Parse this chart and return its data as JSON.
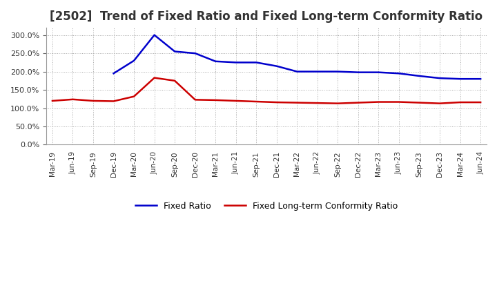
{
  "title": "[2502]  Trend of Fixed Ratio and Fixed Long-term Conformity Ratio",
  "x_labels": [
    "Mar-19",
    "Jun-19",
    "Sep-19",
    "Dec-19",
    "Mar-20",
    "Jun-20",
    "Sep-20",
    "Dec-20",
    "Mar-21",
    "Jun-21",
    "Sep-21",
    "Dec-21",
    "Mar-22",
    "Jun-22",
    "Sep-22",
    "Dec-22",
    "Mar-23",
    "Jun-23",
    "Sep-23",
    "Dec-23",
    "Mar-24",
    "Jun-24"
  ],
  "fixed_ratio": [
    null,
    null,
    null,
    195.0,
    230.0,
    300.0,
    255.0,
    250.0,
    228.0,
    225.0,
    225.0,
    215.0,
    200.0,
    200.0,
    200.0,
    198.0,
    198.0,
    195.0,
    188.0,
    182.0,
    180.0,
    180.0
  ],
  "fixed_ltcr": [
    120.0,
    124.0,
    120.0,
    119.0,
    132.0,
    183.0,
    175.0,
    123.0,
    122.0,
    120.0,
    118.0,
    116.0,
    115.0,
    114.0,
    113.0,
    115.0,
    117.0,
    117.0,
    115.0,
    113.0,
    116.0,
    116.0
  ],
  "fixed_ratio_color": "#0000CC",
  "fixed_ltcr_color": "#CC0000",
  "ylim": [
    0,
    320
  ],
  "yticks": [
    0,
    50,
    100,
    150,
    200,
    250,
    300
  ],
  "background_color": "#FFFFFF",
  "grid_color": "#AAAAAA",
  "title_fontsize": 12,
  "legend_fixed_ratio": "Fixed Ratio",
  "legend_fixed_ltcr": "Fixed Long-term Conformity Ratio"
}
